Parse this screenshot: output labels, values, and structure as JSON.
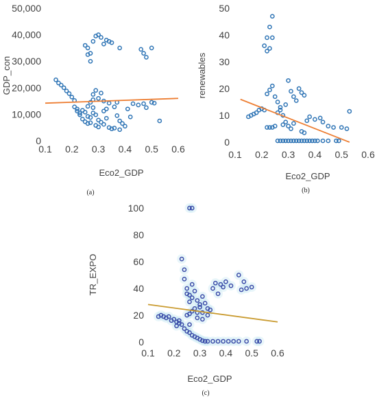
{
  "chart_data": [
    {
      "panel_label": "(a)",
      "type": "scatter",
      "xlabel": "Eco2_GDP",
      "ylabel": "GDP_con",
      "xlim": [
        0.1,
        0.6
      ],
      "ylim": [
        0,
        50000
      ],
      "xticks": [
        "0.1",
        "0.2",
        "0.3",
        "0.4",
        "0.5",
        "0.6"
      ],
      "yticks": [
        "0",
        "10,000",
        "20,000",
        "30,000",
        "40,000",
        "50,000"
      ],
      "point_color": "#2e74b5",
      "trend_color": "#ed7d31",
      "points": [
        [
          0.14,
          23000
        ],
        [
          0.15,
          21800
        ],
        [
          0.16,
          21000
        ],
        [
          0.17,
          20000
        ],
        [
          0.18,
          18800
        ],
        [
          0.19,
          17800
        ],
        [
          0.2,
          16500
        ],
        [
          0.21,
          15200
        ],
        [
          0.21,
          12800
        ],
        [
          0.22,
          12000
        ],
        [
          0.22,
          11200
        ],
        [
          0.23,
          10500
        ],
        [
          0.23,
          9800
        ],
        [
          0.24,
          11500
        ],
        [
          0.24,
          8200
        ],
        [
          0.25,
          10800
        ],
        [
          0.25,
          7200
        ],
        [
          0.26,
          9200
        ],
        [
          0.26,
          6500
        ],
        [
          0.27,
          8800
        ],
        [
          0.27,
          6800
        ],
        [
          0.28,
          12500
        ],
        [
          0.28,
          10500
        ],
        [
          0.29,
          9800
        ],
        [
          0.29,
          5800
        ],
        [
          0.3,
          7800
        ],
        [
          0.3,
          5200
        ],
        [
          0.31,
          7000
        ],
        [
          0.32,
          11200
        ],
        [
          0.32,
          6200
        ],
        [
          0.33,
          8500
        ],
        [
          0.34,
          5000
        ],
        [
          0.35,
          4500
        ],
        [
          0.36,
          4800
        ],
        [
          0.37,
          9500
        ],
        [
          0.38,
          7500
        ],
        [
          0.38,
          4200
        ],
        [
          0.39,
          6500
        ],
        [
          0.4,
          5500
        ],
        [
          0.41,
          12000
        ],
        [
          0.42,
          9000
        ],
        [
          0.43,
          14000
        ],
        [
          0.45,
          13500
        ],
        [
          0.47,
          14000
        ],
        [
          0.48,
          12500
        ],
        [
          0.5,
          14500
        ],
        [
          0.51,
          14200
        ],
        [
          0.53,
          7500
        ],
        [
          0.26,
          13000
        ],
        [
          0.27,
          14500
        ],
        [
          0.28,
          15500
        ],
        [
          0.28,
          17500
        ],
        [
          0.29,
          19000
        ],
        [
          0.3,
          16000
        ],
        [
          0.31,
          18000
        ],
        [
          0.32,
          15000
        ],
        [
          0.33,
          12000
        ],
        [
          0.34,
          14200
        ],
        [
          0.36,
          12800
        ],
        [
          0.37,
          14500
        ],
        [
          0.25,
          36000
        ],
        [
          0.26,
          35000
        ],
        [
          0.27,
          33000
        ],
        [
          0.27,
          30000
        ],
        [
          0.28,
          37500
        ],
        [
          0.29,
          39500
        ],
        [
          0.3,
          40000
        ],
        [
          0.31,
          39000
        ],
        [
          0.32,
          36500
        ],
        [
          0.33,
          38000
        ],
        [
          0.34,
          37500
        ],
        [
          0.35,
          37000
        ],
        [
          0.38,
          35000
        ],
        [
          0.46,
          34500
        ],
        [
          0.47,
          33000
        ],
        [
          0.48,
          31500
        ],
        [
          0.5,
          35000
        ],
        [
          0.26,
          32500
        ]
      ],
      "trend": [
        [
          0.1,
          14200
        ],
        [
          0.6,
          16000
        ]
      ]
    },
    {
      "panel_label": "(b)",
      "type": "scatter",
      "xlabel": "Eco2_GDP",
      "ylabel": "renewables",
      "xlim": [
        0.1,
        0.6
      ],
      "ylim": [
        0,
        50
      ],
      "xticks": [
        "0.1",
        "0.2",
        "0.3",
        "0.4",
        "0.5",
        "0.6"
      ],
      "yticks": [
        "0",
        "10",
        "20",
        "30",
        "40",
        "50"
      ],
      "point_color": "#2e74b5",
      "trend_color": "#ed7d31",
      "points": [
        [
          0.15,
          9.5
        ],
        [
          0.16,
          10
        ],
        [
          0.17,
          10.5
        ],
        [
          0.18,
          11
        ],
        [
          0.19,
          12
        ],
        [
          0.2,
          12.5
        ],
        [
          0.21,
          12
        ],
        [
          0.21,
          36
        ],
        [
          0.22,
          34
        ],
        [
          0.22,
          39
        ],
        [
          0.23,
          43
        ],
        [
          0.24,
          47
        ],
        [
          0.24,
          39
        ],
        [
          0.23,
          35
        ],
        [
          0.22,
          18
        ],
        [
          0.23,
          19.5
        ],
        [
          0.24,
          21
        ],
        [
          0.25,
          17
        ],
        [
          0.26,
          15
        ],
        [
          0.27,
          12
        ],
        [
          0.28,
          10
        ],
        [
          0.3,
          23
        ],
        [
          0.31,
          19
        ],
        [
          0.32,
          17
        ],
        [
          0.33,
          15.5
        ],
        [
          0.34,
          20
        ],
        [
          0.35,
          18.5
        ],
        [
          0.36,
          17.5
        ],
        [
          0.37,
          8
        ],
        [
          0.38,
          9.5
        ],
        [
          0.4,
          8.5
        ],
        [
          0.42,
          9
        ],
        [
          0.43,
          7.5
        ],
        [
          0.45,
          6
        ],
        [
          0.47,
          5.5
        ],
        [
          0.5,
          5.5
        ],
        [
          0.52,
          5
        ],
        [
          0.53,
          11.5
        ],
        [
          0.22,
          5.5
        ],
        [
          0.23,
          5.5
        ],
        [
          0.24,
          5.5
        ],
        [
          0.25,
          6
        ],
        [
          0.28,
          6.5
        ],
        [
          0.29,
          7.5
        ],
        [
          0.3,
          6
        ],
        [
          0.31,
          5
        ],
        [
          0.32,
          7
        ],
        [
          0.35,
          4
        ],
        [
          0.36,
          3.5
        ],
        [
          0.26,
          0.5
        ],
        [
          0.27,
          0.5
        ],
        [
          0.28,
          0.5
        ],
        [
          0.29,
          0.5
        ],
        [
          0.3,
          0.5
        ],
        [
          0.31,
          0.5
        ],
        [
          0.32,
          0.5
        ],
        [
          0.33,
          0.5
        ],
        [
          0.34,
          0.5
        ],
        [
          0.35,
          0.5
        ],
        [
          0.36,
          0.5
        ],
        [
          0.37,
          0.5
        ],
        [
          0.38,
          0.5
        ],
        [
          0.39,
          0.5
        ],
        [
          0.4,
          0.5
        ],
        [
          0.41,
          0.5
        ],
        [
          0.43,
          0.5
        ],
        [
          0.45,
          0.5
        ],
        [
          0.48,
          0.5
        ],
        [
          0.49,
          0.5
        ],
        [
          0.26,
          11
        ],
        [
          0.27,
          13
        ],
        [
          0.29,
          14
        ]
      ],
      "trend": [
        [
          0.12,
          16
        ],
        [
          0.53,
          0
        ]
      ]
    },
    {
      "panel_label": "(c)",
      "type": "scatter",
      "xlabel": "Eco2_GDP",
      "ylabel": "TR_EXPO",
      "xlim": [
        0.1,
        0.6
      ],
      "ylim": [
        0,
        100
      ],
      "xticks": [
        "0.1",
        "0.2",
        "0.3",
        "0.4",
        "0.5",
        "0.6"
      ],
      "yticks": [
        "0",
        "20",
        "40",
        "60",
        "80",
        "100"
      ],
      "point_color": "#3a4ba8",
      "trend_color": "#c99a2e",
      "points": [
        [
          0.14,
          19
        ],
        [
          0.15,
          20
        ],
        [
          0.16,
          19
        ],
        [
          0.17,
          18
        ],
        [
          0.18,
          19
        ],
        [
          0.19,
          16
        ],
        [
          0.2,
          17
        ],
        [
          0.21,
          15
        ],
        [
          0.21,
          12
        ],
        [
          0.22,
          16
        ],
        [
          0.22,
          14
        ],
        [
          0.23,
          13
        ],
        [
          0.23,
          62
        ],
        [
          0.24,
          54
        ],
        [
          0.24,
          47
        ],
        [
          0.25,
          40
        ],
        [
          0.25,
          36
        ],
        [
          0.26,
          35
        ],
        [
          0.26,
          30
        ],
        [
          0.27,
          33
        ],
        [
          0.27,
          43
        ],
        [
          0.28,
          38
        ],
        [
          0.29,
          31
        ],
        [
          0.3,
          28
        ],
        [
          0.31,
          34
        ],
        [
          0.31,
          22
        ],
        [
          0.32,
          29
        ],
        [
          0.33,
          25
        ],
        [
          0.33,
          20
        ],
        [
          0.34,
          24
        ],
        [
          0.35,
          40
        ],
        [
          0.36,
          44
        ],
        [
          0.37,
          36
        ],
        [
          0.38,
          43
        ],
        [
          0.39,
          41
        ],
        [
          0.4,
          45
        ],
        [
          0.42,
          42
        ],
        [
          0.45,
          50
        ],
        [
          0.47,
          45
        ],
        [
          0.48,
          40
        ],
        [
          0.5,
          41
        ],
        [
          0.46,
          39
        ],
        [
          0.24,
          10
        ],
        [
          0.25,
          8
        ],
        [
          0.26,
          7
        ],
        [
          0.27,
          5
        ],
        [
          0.28,
          4
        ],
        [
          0.29,
          3
        ],
        [
          0.3,
          2
        ],
        [
          0.31,
          1
        ],
        [
          0.32,
          0.5
        ],
        [
          0.33,
          0.5
        ],
        [
          0.35,
          0.5
        ],
        [
          0.37,
          0.5
        ],
        [
          0.39,
          0.5
        ],
        [
          0.41,
          0.5
        ],
        [
          0.43,
          0.5
        ],
        [
          0.45,
          0.5
        ],
        [
          0.48,
          0.5
        ],
        [
          0.52,
          0.5
        ],
        [
          0.53,
          0.5
        ],
        [
          0.25,
          20
        ],
        [
          0.26,
          21
        ],
        [
          0.27,
          23
        ],
        [
          0.28,
          25
        ],
        [
          0.29,
          22
        ],
        [
          0.3,
          26
        ],
        [
          0.26,
          100
        ],
        [
          0.27,
          100
        ],
        [
          0.26,
          13
        ],
        [
          0.29,
          18
        ],
        [
          0.31,
          17
        ]
      ],
      "trend": [
        [
          0.1,
          28
        ],
        [
          0.6,
          15
        ]
      ]
    }
  ]
}
